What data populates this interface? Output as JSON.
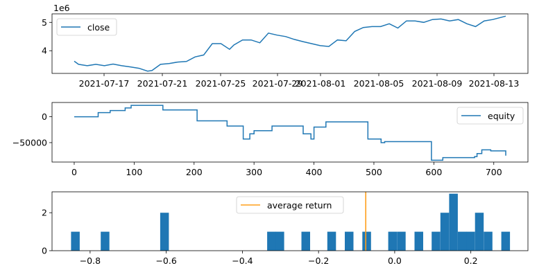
{
  "chart_data": [
    {
      "type": "line",
      "title": "",
      "xlabel": "",
      "ylabel": "",
      "y_offset_label": "1e6",
      "x_ticks": [
        "2021-07-17",
        "2021-07-21",
        "2021-07-25",
        "2021-07-29",
        "2021-08-01",
        "2021-08-05",
        "2021-08-09",
        "2021-08-13"
      ],
      "y_ticks": [
        "4",
        "5"
      ],
      "ylim": [
        3.2,
        5.3
      ],
      "legend": {
        "position": "upper-left",
        "entries": [
          "close"
        ]
      },
      "series": [
        {
          "name": "close",
          "color": "#1f77b4",
          "x_frac": [
            0,
            0.01,
            0.03,
            0.05,
            0.07,
            0.09,
            0.11,
            0.13,
            0.15,
            0.17,
            0.18,
            0.2,
            0.22,
            0.24,
            0.26,
            0.28,
            0.3,
            0.32,
            0.34,
            0.36,
            0.37,
            0.39,
            0.41,
            0.43,
            0.45,
            0.47,
            0.49,
            0.51,
            0.53,
            0.55,
            0.57,
            0.59,
            0.61,
            0.63,
            0.65,
            0.67,
            0.69,
            0.71,
            0.73,
            0.75,
            0.77,
            0.79,
            0.81,
            0.83,
            0.85,
            0.87,
            0.89,
            0.91,
            0.93,
            0.95,
            0.97,
            1.0
          ],
          "values": [
            3.63,
            3.52,
            3.47,
            3.52,
            3.47,
            3.53,
            3.47,
            3.43,
            3.38,
            3.28,
            3.3,
            3.52,
            3.55,
            3.6,
            3.62,
            3.78,
            3.85,
            4.25,
            4.25,
            4.05,
            4.2,
            4.38,
            4.38,
            4.28,
            4.62,
            4.55,
            4.5,
            4.4,
            4.32,
            4.25,
            4.18,
            4.15,
            4.38,
            4.35,
            4.68,
            4.82,
            4.85,
            4.85,
            4.95,
            4.8,
            5.05,
            5.05,
            5.0,
            5.1,
            5.12,
            5.05,
            5.1,
            4.95,
            4.85,
            5.05,
            5.1,
            5.22
          ]
        }
      ]
    },
    {
      "type": "line",
      "title": "",
      "xlabel": "",
      "ylabel": "",
      "x_ticks": [
        0,
        100,
        200,
        300,
        400,
        500,
        600,
        700
      ],
      "y_ticks": [
        0,
        -50000
      ],
      "xlim": [
        -37,
        757
      ],
      "ylim": [
        -87500,
        27500
      ],
      "legend": {
        "position": "upper-right",
        "entries": [
          "equity"
        ]
      },
      "series": [
        {
          "name": "equity",
          "color": "#1f77b4",
          "steps": [
            [
              0,
              0
            ],
            [
              40,
              8000
            ],
            [
              60,
              12000
            ],
            [
              85,
              17000
            ],
            [
              95,
              22000
            ],
            [
              148,
              13000
            ],
            [
              205,
              -8000
            ],
            [
              255,
              -18000
            ],
            [
              282,
              -43000
            ],
            [
              293,
              -33000
            ],
            [
              300,
              -27000
            ],
            [
              330,
              -18000
            ],
            [
              382,
              -33000
            ],
            [
              395,
              -43000
            ],
            [
              400,
              -20000
            ],
            [
              420,
              -10000
            ],
            [
              490,
              -43000
            ],
            [
              512,
              -50000
            ],
            [
              518,
              -48000
            ],
            [
              596,
              -84000
            ],
            [
              615,
              -79000
            ],
            [
              668,
              -77000
            ],
            [
              672,
              -71000
            ],
            [
              680,
              -64000
            ],
            [
              695,
              -66000
            ],
            [
              720,
              -75000
            ]
          ],
          "end_x": 720
        }
      ]
    },
    {
      "type": "bar",
      "title": "",
      "xlabel": "",
      "ylabel": "",
      "x_ticks": [
        -0.8,
        -0.6,
        -0.4,
        -0.2,
        0.0,
        0.2
      ],
      "x_tick_labels": [
        "−0.8",
        "−0.6",
        "−0.4",
        "−0.2",
        "0.0",
        "0.2"
      ],
      "y_ticks": [
        0,
        2
      ],
      "xlim": [
        -0.9,
        0.35
      ],
      "ylim": [
        0,
        3.1
      ],
      "bin_width": 0.0228,
      "color": "#1f77b4",
      "legend": {
        "position": "upper-center",
        "entries": [
          "average return"
        ]
      },
      "bins": [
        {
          "x": -0.85,
          "count": 1
        },
        {
          "x": -0.772,
          "count": 1
        },
        {
          "x": -0.616,
          "count": 2
        },
        {
          "x": -0.335,
          "count": 1
        },
        {
          "x": -0.313,
          "count": 1
        },
        {
          "x": -0.245,
          "count": 1
        },
        {
          "x": -0.177,
          "count": 1
        },
        {
          "x": -0.131,
          "count": 1
        },
        {
          "x": -0.085,
          "count": 1
        },
        {
          "x": -0.017,
          "count": 1
        },
        {
          "x": 0.006,
          "count": 1
        },
        {
          "x": 0.052,
          "count": 1
        },
        {
          "x": 0.097,
          "count": 1
        },
        {
          "x": 0.12,
          "count": 2
        },
        {
          "x": 0.143,
          "count": 3
        },
        {
          "x": 0.166,
          "count": 1
        },
        {
          "x": 0.188,
          "count": 1
        },
        {
          "x": 0.211,
          "count": 2
        },
        {
          "x": 0.234,
          "count": 1
        },
        {
          "x": 0.28,
          "count": 1
        }
      ],
      "average_return": {
        "label": "average return",
        "value": -0.076,
        "color": "#ff9f1a"
      }
    }
  ]
}
